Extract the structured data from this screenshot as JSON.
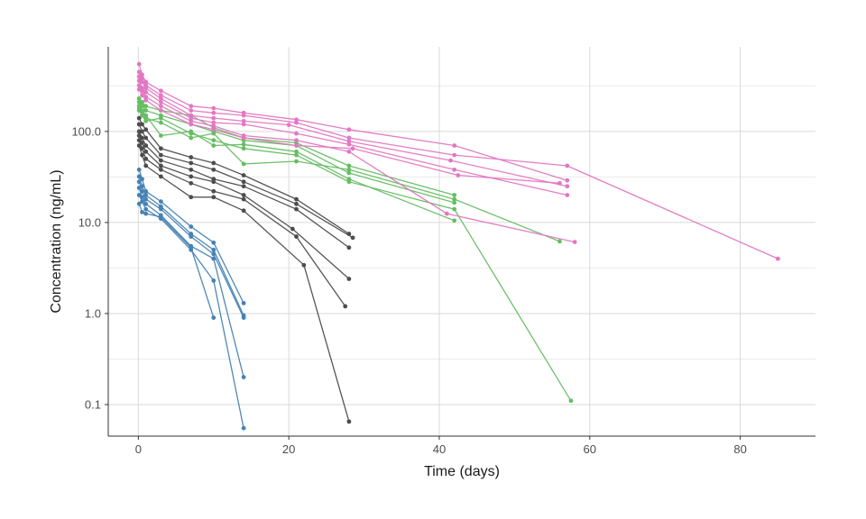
{
  "chart_data": {
    "type": "line",
    "title": "",
    "xlabel": "Time (days)",
    "ylabel": "Concentration (ng/mL)",
    "xlim": [
      -4,
      90
    ],
    "ylim": [
      0.045,
      850
    ],
    "yscale": "log",
    "grid": true,
    "legend": "none",
    "x_ticks": [
      0,
      20,
      40,
      60,
      80
    ],
    "x_tick_labels": [
      "0",
      "20",
      "40",
      "60",
      "80"
    ],
    "y_ticks": [
      0.1,
      1,
      10,
      100
    ],
    "y_tick_labels": [
      "0.1",
      "1.0",
      "10.0",
      "100.0"
    ],
    "series": [
      {
        "color": "#4682b4",
        "x": [
          0.1,
          0.5,
          1,
          3,
          7,
          10,
          14
        ],
        "y": [
          38,
          30,
          22,
          17,
          9,
          6,
          1.3
        ]
      },
      {
        "color": "#4682b4",
        "x": [
          0.1,
          0.5,
          1,
          3,
          7,
          10,
          14
        ],
        "y": [
          32,
          25,
          20,
          15,
          7.5,
          5,
          0.95
        ]
      },
      {
        "color": "#4682b4",
        "x": [
          0.1,
          0.5,
          1,
          3,
          7,
          10,
          14
        ],
        "y": [
          28,
          22,
          18,
          14,
          7,
          4.5,
          0.9
        ]
      },
      {
        "color": "#4682b4",
        "x": [
          0.1,
          0.5,
          1,
          3,
          7,
          10,
          14
        ],
        "y": [
          24,
          19,
          16,
          12,
          5.5,
          4,
          0.2
        ]
      },
      {
        "color": "#4682b4",
        "x": [
          0.1,
          0.5,
          1,
          3,
          7,
          10,
          14
        ],
        "y": [
          20,
          17,
          14,
          11,
          5,
          2.3,
          0.055
        ]
      },
      {
        "color": "#4682b4",
        "x": [
          0.1,
          0.5,
          1,
          3,
          7,
          10
        ],
        "y": [
          16,
          13,
          12.5,
          11.5,
          5.3,
          0.9
        ]
      },
      {
        "color": "#4d4d4d",
        "x": [
          0.1,
          0.5,
          1,
          3,
          7,
          10,
          14,
          21,
          28
        ],
        "y": [
          140,
          120,
          105,
          65,
          52,
          45,
          33,
          18,
          7.5
        ]
      },
      {
        "color": "#4d4d4d",
        "x": [
          0.1,
          0.5,
          1,
          3,
          7,
          10,
          14,
          21,
          28.5
        ],
        "y": [
          120,
          100,
          85,
          55,
          45,
          38,
          28,
          16,
          6.8
        ]
      },
      {
        "color": "#4d4d4d",
        "x": [
          0.1,
          0.5,
          1,
          3,
          7,
          10,
          14,
          21,
          28
        ],
        "y": [
          100,
          85,
          70,
          48,
          38,
          30,
          25,
          14,
          5.3
        ]
      },
      {
        "color": "#4d4d4d",
        "x": [
          0.1,
          0.5,
          1,
          3,
          7,
          10,
          14,
          20.5,
          28
        ],
        "y": [
          90,
          75,
          60,
          42,
          32,
          28,
          20,
          8.5,
          2.4
        ]
      },
      {
        "color": "#4d4d4d",
        "x": [
          0.1,
          0.5,
          1,
          3,
          7,
          10,
          14,
          21,
          27.5
        ],
        "y": [
          80,
          65,
          50,
          38,
          27,
          22,
          18,
          7,
          1.2
        ]
      },
      {
        "color": "#4d4d4d",
        "x": [
          0.1,
          0.5,
          1,
          3,
          7,
          10,
          14,
          22,
          28
        ],
        "y": [
          70,
          55,
          42,
          32,
          19,
          19,
          13.5,
          3.4,
          0.065
        ]
      },
      {
        "color": "#66bd63",
        "x": [
          0.1,
          0.5,
          1,
          3,
          7,
          10,
          14,
          21,
          28,
          42
        ],
        "y": [
          230,
          210,
          190,
          170,
          150,
          110,
          85,
          75,
          42,
          20
        ]
      },
      {
        "color": "#66bd63",
        "x": [
          0.1,
          0.5,
          1,
          3,
          7,
          10,
          14,
          21,
          28,
          42
        ],
        "y": [
          210,
          190,
          170,
          150,
          120,
          100,
          80,
          70,
          35,
          16.5
        ]
      },
      {
        "color": "#66bd63",
        "x": [
          0.1,
          0.5,
          1,
          3,
          7,
          10,
          14,
          21,
          28,
          42
        ],
        "y": [
          190,
          170,
          150,
          90,
          100,
          70,
          72,
          60,
          30,
          10.5
        ]
      },
      {
        "color": "#66bd63",
        "x": [
          0.1,
          0.5,
          1,
          3,
          7,
          10,
          14,
          21,
          28,
          42,
          56
        ],
        "y": [
          180,
          165,
          140,
          125,
          85,
          95,
          44,
          47,
          38,
          18,
          6.2
        ]
      },
      {
        "color": "#66bd63",
        "x": [
          0.1,
          0.5,
          1,
          3,
          7,
          10,
          14,
          21,
          28,
          42,
          57.5
        ],
        "y": [
          170,
          150,
          130,
          140,
          95,
          80,
          65,
          55,
          28,
          14,
          0.11
        ]
      },
      {
        "color": "#e377c2",
        "x": [
          0.1,
          0.5,
          1,
          3,
          7,
          10,
          14,
          21,
          28,
          42,
          57
        ],
        "y": [
          550,
          420,
          350,
          280,
          190,
          180,
          160,
          135,
          105,
          70,
          29
        ]
      },
      {
        "color": "#e377c2",
        "x": [
          0.1,
          0.5,
          1,
          3,
          7,
          10,
          14,
          21,
          28,
          42,
          57,
          85
        ],
        "y": [
          450,
          380,
          320,
          250,
          170,
          160,
          150,
          125,
          85,
          55,
          42,
          4
        ]
      },
      {
        "color": "#e377c2",
        "x": [
          0.1,
          0.5,
          1,
          3,
          7,
          10,
          14,
          20,
          28,
          41.5,
          57
        ],
        "y": [
          400,
          350,
          300,
          230,
          150,
          140,
          130,
          118,
          78,
          48,
          25
        ]
      },
      {
        "color": "#e377c2",
        "x": [
          0.1,
          0.5,
          1,
          3,
          7,
          10,
          14,
          21,
          28,
          42,
          57
        ],
        "y": [
          360,
          300,
          270,
          210,
          140,
          125,
          120,
          95,
          72,
          38,
          20
        ]
      },
      {
        "color": "#e377c2",
        "x": [
          0.1,
          0.5,
          1,
          3,
          7,
          10,
          14,
          21,
          28,
          41,
          58
        ],
        "y": [
          320,
          280,
          240,
          190,
          130,
          115,
          90,
          80,
          60,
          12.5,
          6.1
        ]
      },
      {
        "color": "#e377c2",
        "x": [
          0.1,
          0.5,
          1,
          3,
          7,
          10,
          14,
          21,
          28.5,
          42.5,
          56
        ],
        "y": [
          290,
          250,
          220,
          170,
          120,
          105,
          85,
          70,
          65,
          33,
          27
        ]
      }
    ]
  }
}
